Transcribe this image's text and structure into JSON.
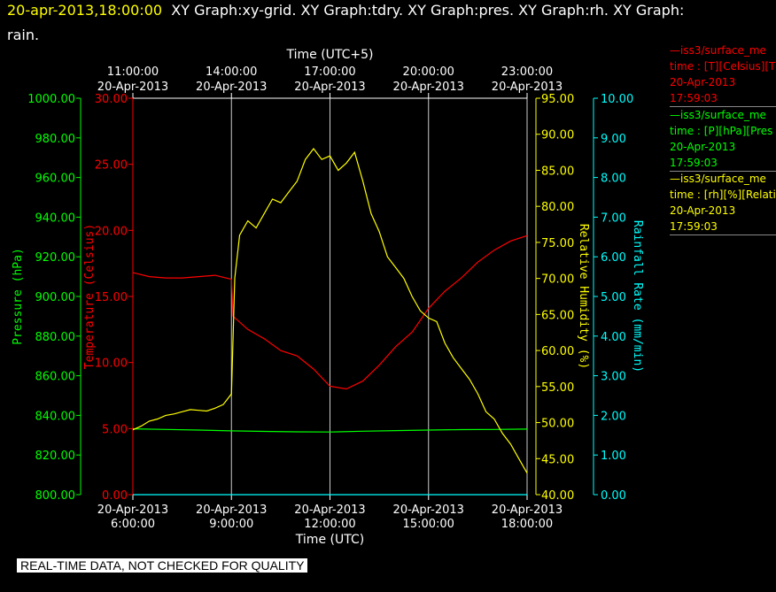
{
  "header": {
    "date": "20-apr-2013,18:00:00",
    "graphs_line1": "XY Graph:xy-grid.  XY Graph:tdry.  XY Graph:pres.  XY Graph:rh.  XY Graph:",
    "graphs_line2": "rain."
  },
  "legend": [
    {
      "name": "—iss3/surface_me",
      "line2": "time : [T][Celsius][T",
      "line3": "20-Apr-2013",
      "line4": "17:59:03",
      "color": "#ff0000"
    },
    {
      "name": "—iss3/surface_me",
      "line2": "time : [P][hPa][Pres",
      "line3": "20-Apr-2013",
      "line4": "17:59:03",
      "color": "#00ff00"
    },
    {
      "name": "—iss3/surface_me",
      "line2": "time : [rh][%][Relati",
      "line3": "20-Apr-2013",
      "line4": "17:59:03",
      "color": "#ffff00"
    }
  ],
  "banner": "REAL-TIME DATA, NOT CHECKED FOR QUALITY",
  "colors": {
    "temperature": "#ff0000",
    "pressure": "#00ff00",
    "humidity": "#ffff00",
    "rain": "#00ffff",
    "grid": "#ffffff"
  },
  "chart_data": {
    "type": "line",
    "xlabel": "Time (UTC)",
    "x2label": "Time (UTC+5)",
    "x_ticks_bottom": [
      {
        "date": "20-Apr-2013",
        "time": "6:00:00",
        "hour": 6
      },
      {
        "date": "20-Apr-2013",
        "time": "9:00:00",
        "hour": 9
      },
      {
        "date": "20-Apr-2013",
        "time": "12:00:00",
        "hour": 12
      },
      {
        "date": "20-Apr-2013",
        "time": "15:00:00",
        "hour": 15
      },
      {
        "date": "20-Apr-2013",
        "time": "18:00:00",
        "hour": 18
      }
    ],
    "x_ticks_top": [
      {
        "time": "11:00:00",
        "date": "20-Apr-2013",
        "hour": 6
      },
      {
        "time": "14:00:00",
        "date": "20-Apr-2013",
        "hour": 9
      },
      {
        "time": "17:00:00",
        "date": "20-Apr-2013",
        "hour": 12
      },
      {
        "time": "20:00:00",
        "date": "20-Apr-2013",
        "hour": 15
      },
      {
        "time": "23:00:00",
        "date": "20-Apr-2013",
        "hour": 18
      }
    ],
    "xlim": [
      6,
      18
    ],
    "grid": true,
    "axes": {
      "pressure": {
        "label": "Pressure (hPa)",
        "ylim": [
          800,
          1000
        ],
        "ticks": [
          "800.00",
          "820.00",
          "840.00",
          "860.00",
          "880.00",
          "900.00",
          "920.00",
          "940.00",
          "960.00",
          "980.00",
          "1000.00"
        ]
      },
      "temperature": {
        "label": "Temperature (Celsius)",
        "ylim": [
          0,
          30
        ],
        "ticks": [
          "0.00",
          "5.00",
          "10.00",
          "15.00",
          "20.00",
          "25.00",
          "30.00"
        ]
      },
      "humidity": {
        "label": "Relative Humidity (%)",
        "ylim": [
          40,
          95
        ],
        "ticks": [
          "40.00",
          "45.00",
          "50.00",
          "55.00",
          "60.00",
          "65.00",
          "70.00",
          "75.00",
          "80.00",
          "85.00",
          "90.00",
          "95.00"
        ]
      },
      "rain": {
        "label": "Rainfall Rate (mm/min)",
        "ylim": [
          0,
          10
        ],
        "ticks": [
          "0.00",
          "1.00",
          "2.00",
          "3.00",
          "4.00",
          "5.00",
          "6.00",
          "7.00",
          "8.00",
          "9.00",
          "10.00"
        ]
      }
    },
    "series": [
      {
        "key": "temperature",
        "axis": "temperature",
        "x": [
          6,
          6.5,
          7,
          7.5,
          8,
          8.5,
          9,
          9.05,
          9.5,
          10,
          10.5,
          11,
          11.5,
          12,
          12.5,
          13,
          13.5,
          14,
          14.5,
          15,
          15.5,
          16,
          16.5,
          17,
          17.5,
          18
        ],
        "values": [
          16.8,
          16.5,
          16.4,
          16.4,
          16.5,
          16.6,
          16.3,
          13.5,
          12.5,
          11.8,
          10.9,
          10.5,
          9.5,
          8.2,
          8.0,
          8.6,
          9.8,
          11.2,
          12.3,
          14.1,
          15.4,
          16.4,
          17.6,
          18.5,
          19.2,
          19.6
        ]
      },
      {
        "key": "pressure",
        "axis": "pressure",
        "x": [
          6,
          7,
          8,
          9,
          10,
          11,
          12,
          13,
          14,
          15,
          16,
          17,
          18
        ],
        "values": [
          833.2,
          832.9,
          832.6,
          832.2,
          831.9,
          831.7,
          831.6,
          832.0,
          832.3,
          832.6,
          832.8,
          832.9,
          833.1
        ]
      },
      {
        "key": "humidity",
        "axis": "humidity",
        "x": [
          6,
          6.25,
          6.5,
          6.75,
          7,
          7.25,
          7.5,
          7.75,
          8,
          8.25,
          8.5,
          8.75,
          9,
          9.1,
          9.25,
          9.5,
          9.75,
          10,
          10.25,
          10.5,
          10.75,
          11,
          11.25,
          11.5,
          11.75,
          12,
          12.25,
          12.5,
          12.75,
          13,
          13.25,
          13.5,
          13.75,
          14,
          14.25,
          14.5,
          14.75,
          15,
          15.25,
          15.5,
          15.75,
          16,
          16.25,
          16.5,
          16.75,
          17,
          17.25,
          17.5,
          17.75,
          18
        ],
        "values": [
          49,
          49.5,
          50.2,
          50.5,
          51,
          51.2,
          51.5,
          51.8,
          51.7,
          51.6,
          52,
          52.5,
          54,
          70,
          76,
          78,
          77,
          79,
          81,
          80.5,
          82,
          83.5,
          86.5,
          88,
          86.5,
          87,
          85,
          86,
          87.5,
          83.5,
          79,
          76.5,
          73,
          71.5,
          70,
          67.5,
          65.5,
          64.5,
          64,
          61,
          59,
          57.5,
          56,
          54,
          51.5,
          50.5,
          48.5,
          47,
          45,
          43
        ]
      },
      {
        "key": "rain",
        "axis": "rain",
        "x": [
          6,
          18
        ],
        "values": [
          0,
          0
        ]
      }
    ]
  }
}
